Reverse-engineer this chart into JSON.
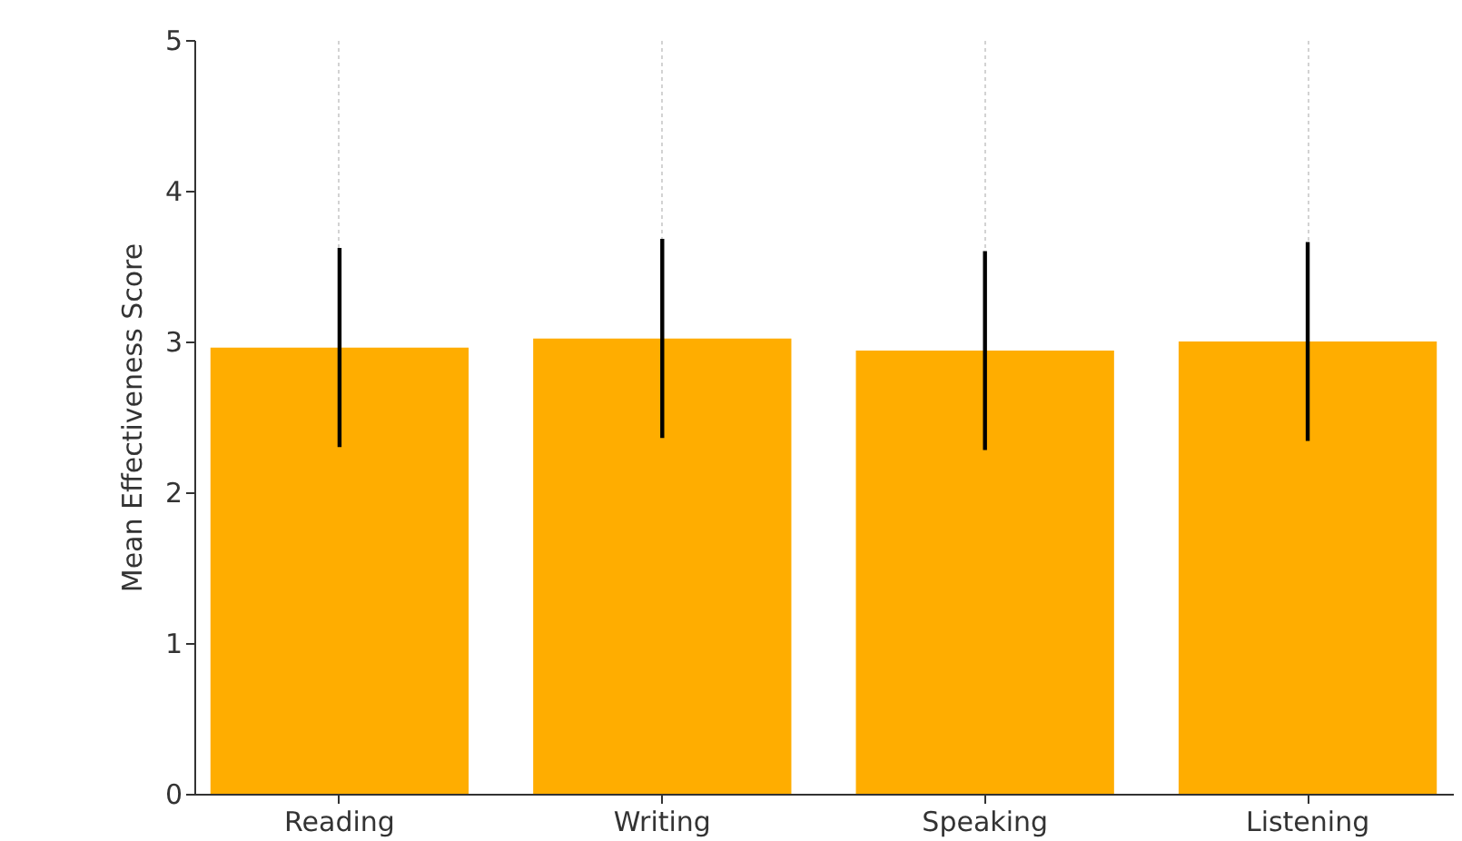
{
  "chart_data": {
    "type": "bar",
    "ylabel": "Mean Effectiveness Score",
    "categories": [
      "Reading",
      "Writing",
      "Speaking",
      "Listening"
    ],
    "values": [
      2.96,
      3.02,
      2.94,
      3.0
    ],
    "errors": [
      0.66,
      0.66,
      0.66,
      0.66
    ],
    "color": "#ffad00",
    "ylim": [
      0,
      5
    ],
    "yticks": [
      0,
      1,
      2,
      3,
      4,
      5
    ],
    "grid": "x"
  }
}
